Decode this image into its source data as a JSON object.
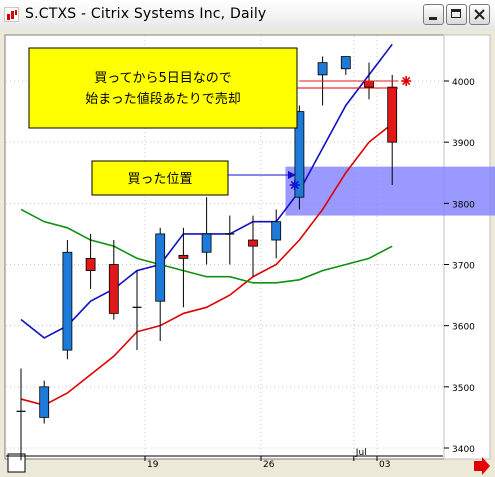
{
  "window": {
    "title": "S.CTXS - Citrix Systems Inc, Daily",
    "buttons": {
      "minimize": "minimize",
      "maximize": "maximize",
      "close": "close"
    }
  },
  "annotations": {
    "note_top_line1": "買ってから5日目なので",
    "note_top_line2": "始まった値段あたりで売却",
    "note_bought": "買った位置"
  },
  "colors": {
    "up_candle": "#1e7ad8",
    "down_candle": "#e01818",
    "ma_blue": "#1010c8",
    "ma_red": "#e00000",
    "ma_green": "#109010",
    "callout_fill": "#ffff00",
    "highlight_band": "#8080ff"
  },
  "chart_data": {
    "type": "candlestick",
    "title": "S.CTXS - Citrix Systems Inc, Daily",
    "ylim": [
      3400,
      4100
    ],
    "y_ticks": [
      3400,
      3500,
      3600,
      3700,
      3800,
      3900,
      4000
    ],
    "x_ticks": [
      {
        "label": "19",
        "index": 5
      },
      {
        "label": "26",
        "index": 10
      },
      {
        "label": "Jul",
        "index": 14
      },
      {
        "label": "03",
        "index": 15
      }
    ],
    "candles": [
      {
        "o": 3460,
        "h": 3530,
        "l": 3380,
        "c": 3460
      },
      {
        "o": 3450,
        "h": 3510,
        "l": 3440,
        "c": 3500
      },
      {
        "o": 3560,
        "h": 3740,
        "l": 3545,
        "c": 3720
      },
      {
        "o": 3710,
        "h": 3750,
        "l": 3660,
        "c": 3690
      },
      {
        "o": 3700,
        "h": 3740,
        "l": 3610,
        "c": 3620
      },
      {
        "o": 3630,
        "h": 3690,
        "l": 3560,
        "c": 3630
      },
      {
        "o": 3640,
        "h": 3760,
        "l": 3575,
        "c": 3750
      },
      {
        "o": 3715,
        "h": 3760,
        "l": 3630,
        "c": 3710
      },
      {
        "o": 3720,
        "h": 3810,
        "l": 3700,
        "c": 3750
      },
      {
        "o": 3750,
        "h": 3780,
        "l": 3700,
        "c": 3750
      },
      {
        "o": 3740,
        "h": 3780,
        "l": 3680,
        "c": 3730
      },
      {
        "o": 3740,
        "h": 3790,
        "l": 3710,
        "c": 3770
      },
      {
        "o": 3810,
        "h": 3960,
        "l": 3790,
        "c": 3950
      },
      {
        "o": 4010,
        "h": 4040,
        "l": 3960,
        "c": 4030
      },
      {
        "o": 4020,
        "h": 4040,
        "l": 4010,
        "c": 4040
      },
      {
        "o": 4000,
        "h": 4030,
        "l": 3970,
        "c": 3990
      },
      {
        "o": 3990,
        "h": 4010,
        "l": 3830,
        "c": 3900
      }
    ],
    "series": [
      {
        "color_key": "ma_blue",
        "values": [
          3610,
          3580,
          3600,
          3640,
          3660,
          3690,
          3700,
          3750,
          3750,
          3750,
          3770,
          3770,
          3820,
          3890,
          3960,
          4010,
          4060
        ]
      },
      {
        "color_key": "ma_red",
        "values": [
          3480,
          3470,
          3490,
          3520,
          3550,
          3590,
          3600,
          3620,
          3630,
          3650,
          3680,
          3700,
          3740,
          3790,
          3850,
          3900,
          3930
        ]
      },
      {
        "color_key": "ma_green",
        "values": [
          3790,
          3770,
          3760,
          3740,
          3730,
          3710,
          3700,
          3690,
          3680,
          3680,
          3670,
          3670,
          3675,
          3690,
          3700,
          3710,
          3730
        ]
      }
    ],
    "horizontal_line": {
      "value": 4000,
      "from_index": 12,
      "to_index": 16,
      "color_key": "down_candle"
    },
    "band": {
      "y_low": 3780,
      "y_high": 3860,
      "from_index": 11.4
    }
  }
}
